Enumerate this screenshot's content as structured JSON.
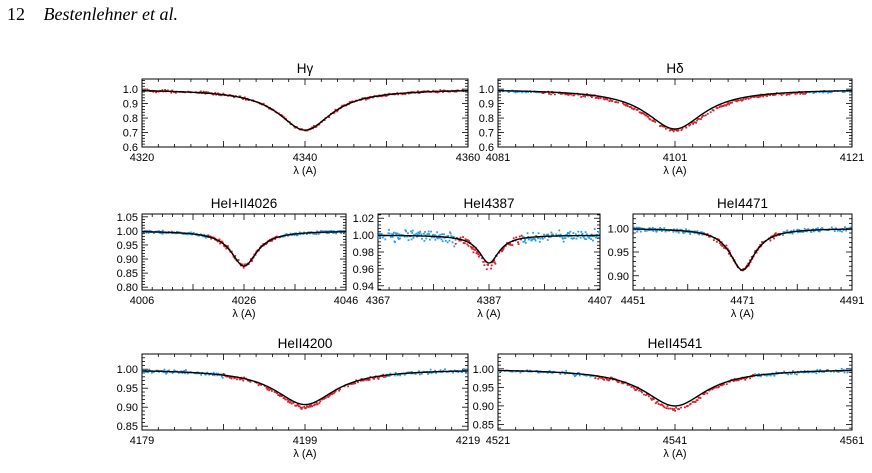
{
  "page_header": {
    "number": "12",
    "authors": "Bestenlehner et al."
  },
  "colors": {
    "model": "#000000",
    "fit_points": "#d81e2a",
    "other_points": "#2a9de0"
  },
  "chart_data": [
    {
      "type": "line",
      "title": "Hγ",
      "xlabel": "λ (A)",
      "xlim": [
        4320,
        4360
      ],
      "ylim": [
        0.6,
        1.07
      ],
      "xticks": [
        "4320",
        "4340",
        "4360"
      ],
      "yticks": [
        "0.6",
        "0.7",
        "0.8",
        "0.9",
        "1.0"
      ],
      "series": [
        {
          "kind": "model",
          "values": {
            "center": 4340.0,
            "depth": 0.283,
            "width": 4.0
          }
        },
        {
          "kind": "observed_fit",
          "color": "red",
          "values": {
            "center": 4340.0,
            "depth": 0.283,
            "width": 4.0,
            "scatter": 0.005,
            "range": [
              4320.3,
              4359.7
            ]
          }
        }
      ]
    },
    {
      "type": "line",
      "title": "Hδ",
      "xlabel": "λ (A)",
      "xlim": [
        4081,
        4121
      ],
      "ylim": [
        0.6,
        1.07
      ],
      "xticks": [
        "4081",
        "4101",
        "4121"
      ],
      "yticks": [
        "0.6",
        "0.7",
        "0.8",
        "0.9",
        "1.0"
      ],
      "series": [
        {
          "kind": "model",
          "values": {
            "center": 4101.0,
            "depth": 0.275,
            "width": 4.0
          }
        },
        {
          "kind": "observed_fit",
          "color": "red",
          "values": {
            "center": 4101.0,
            "depth": 0.285,
            "width": 4.4,
            "scatter": 0.006,
            "range": [
              4086.0,
              4116.0
            ]
          }
        },
        {
          "kind": "observed_other",
          "color": "blue",
          "values": {
            "center": 4101.0,
            "depth": 0.285,
            "width": 4.4,
            "scatter": 0.004,
            "range": [
              4081.0,
              4121.0
            ]
          }
        }
      ]
    },
    {
      "type": "line",
      "title": "HeI+II4026",
      "xlabel": "λ (A)",
      "xlim": [
        4006,
        4046
      ],
      "ylim": [
        0.79,
        1.06
      ],
      "xticks": [
        "4006",
        "4026",
        "4046"
      ],
      "yticks": [
        "0.80",
        "0.85",
        "0.90",
        "0.95",
        "1.00",
        "1.05"
      ],
      "series": [
        {
          "kind": "model",
          "values": {
            "center": 4026.0,
            "depth": 0.125,
            "width": 3.1
          }
        },
        {
          "kind": "observed_fit",
          "color": "red",
          "values": {
            "center": 4026.0,
            "depth": 0.125,
            "width": 3.1,
            "scatter": 0.004,
            "range": [
              4019.0,
              4033.0
            ]
          }
        },
        {
          "kind": "observed_other",
          "color": "blue",
          "values": {
            "center": 4026.0,
            "depth": 0.125,
            "width": 3.1,
            "scatter": 0.003,
            "range": [
              4006.0,
              4046.0
            ]
          }
        }
      ]
    },
    {
      "type": "line",
      "title": "HeI4387",
      "xlabel": "λ (A)",
      "xlim": [
        4367,
        4407
      ],
      "ylim": [
        0.935,
        1.025
      ],
      "xticks": [
        "4367",
        "4387",
        "4407"
      ],
      "yticks": [
        "0.94",
        "0.96",
        "0.98",
        "1.00",
        "1.02"
      ],
      "series": [
        {
          "kind": "model",
          "values": {
            "center": 4387.0,
            "depth": 0.033,
            "width": 2.2
          }
        },
        {
          "kind": "observed_fit",
          "color": "red",
          "values": {
            "center": 4387.0,
            "depth": 0.036,
            "width": 2.3,
            "scatter": 0.003,
            "range": [
              4381.0,
              4393.0
            ]
          }
        },
        {
          "kind": "observed_other",
          "color": "blue",
          "values": {
            "center": 4387.0,
            "depth": 0.036,
            "width": 2.3,
            "scatter": 0.004,
            "range": [
              4367.0,
              4407.0
            ]
          }
        }
      ]
    },
    {
      "type": "line",
      "title": "HeI4471",
      "xlabel": "λ (A)",
      "xlim": [
        4451,
        4491
      ],
      "ylim": [
        0.87,
        1.03
      ],
      "xticks": [
        "4451",
        "4471",
        "4491"
      ],
      "yticks": [
        "0.90",
        "0.95",
        "1.00"
      ],
      "series": [
        {
          "kind": "model",
          "values": {
            "center": 4471.0,
            "depth": 0.088,
            "width": 2.8
          }
        },
        {
          "kind": "observed_fit",
          "color": "red",
          "values": {
            "center": 4471.0,
            "depth": 0.088,
            "width": 2.8,
            "scatter": 0.003,
            "range": [
              4464.0,
              4478.0
            ]
          }
        },
        {
          "kind": "observed_other",
          "color": "blue",
          "values": {
            "center": 4471.0,
            "depth": 0.088,
            "width": 2.8,
            "scatter": 0.003,
            "range": [
              4451.0,
              4491.0
            ]
          }
        }
      ]
    },
    {
      "type": "line",
      "title": "HeII4200",
      "xlabel": "λ (A)",
      "xlim": [
        4179,
        4219
      ],
      "ylim": [
        0.84,
        1.04
      ],
      "xticks": [
        "4179",
        "4199",
        "4219"
      ],
      "yticks": [
        "0.85",
        "0.90",
        "0.95",
        "1.00"
      ],
      "series": [
        {
          "kind": "model",
          "values": {
            "center": 4199.0,
            "depth": 0.093,
            "width": 4.5
          }
        },
        {
          "kind": "observed_fit",
          "color": "red",
          "values": {
            "center": 4199.0,
            "depth": 0.1,
            "width": 4.5,
            "scatter": 0.003,
            "range": [
              4189.0,
              4209.0
            ]
          }
        },
        {
          "kind": "observed_other",
          "color": "blue",
          "values": {
            "center": 4199.0,
            "depth": 0.1,
            "width": 4.5,
            "scatter": 0.003,
            "range": [
              4179.0,
              4219.0
            ]
          }
        }
      ]
    },
    {
      "type": "line",
      "title": "HeII4541",
      "xlabel": "λ (A)",
      "xlim": [
        4521,
        4561
      ],
      "ylim": [
        0.835,
        1.04
      ],
      "xticks": [
        "4521",
        "4541",
        "4561"
      ],
      "yticks": [
        "0.85",
        "0.90",
        "0.95",
        "1.00"
      ],
      "series": [
        {
          "kind": "model",
          "values": {
            "center": 4541.0,
            "depth": 0.1,
            "width": 4.3
          }
        },
        {
          "kind": "observed_fit",
          "color": "red",
          "values": {
            "center": 4541.0,
            "depth": 0.11,
            "width": 4.3,
            "scatter": 0.003,
            "range": [
              4532.0,
              4550.0
            ]
          }
        },
        {
          "kind": "observed_other",
          "color": "blue",
          "values": {
            "center": 4541.0,
            "depth": 0.11,
            "width": 4.3,
            "scatter": 0.003,
            "range": [
              4521.0,
              4561.0
            ]
          }
        }
      ]
    }
  ]
}
